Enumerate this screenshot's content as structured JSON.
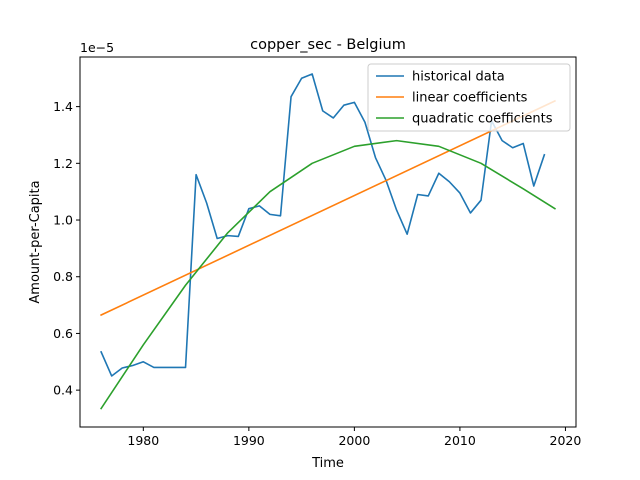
{
  "chart_data": {
    "type": "line",
    "title": "copper_sec - Belgium",
    "xlabel": "Time",
    "ylabel": "Amount-per-Capita",
    "y_offset_label": "1e−5",
    "xlim": [
      1974,
      2021
    ],
    "ylim": [
      0.27,
      1.575
    ],
    "x_ticks": [
      1980,
      1990,
      2000,
      2010,
      2020
    ],
    "y_ticks": [
      0.4,
      0.6,
      0.8,
      1.0,
      1.2,
      1.4
    ],
    "y_tick_labels": [
      "0.4",
      "0.6",
      "0.8",
      "1.0",
      "1.2",
      "1.4"
    ],
    "grid": false,
    "legend_position": "top-right",
    "series": [
      {
        "name": "historical data",
        "color": "#1f77b4",
        "x": [
          1976,
          1977,
          1978,
          1979,
          1980,
          1981,
          1982,
          1983,
          1984,
          1985,
          1986,
          1987,
          1988,
          1989,
          1990,
          1991,
          1992,
          1993,
          1994,
          1995,
          1996,
          1997,
          1998,
          1999,
          2000,
          2001,
          2002,
          2003,
          2004,
          2005,
          2006,
          2007,
          2008,
          2009,
          2010,
          2011,
          2012,
          2013,
          2014,
          2015,
          2016,
          2017,
          2018
        ],
        "y": [
          0.535,
          0.45,
          0.478,
          0.487,
          0.5,
          0.48,
          0.48,
          0.48,
          0.48,
          1.16,
          1.06,
          0.935,
          0.945,
          0.942,
          1.04,
          1.05,
          1.02,
          1.015,
          1.435,
          1.5,
          1.515,
          1.385,
          1.36,
          1.405,
          1.415,
          1.345,
          1.22,
          1.14,
          1.035,
          0.95,
          1.09,
          1.085,
          1.165,
          1.135,
          1.095,
          1.025,
          1.07,
          1.35,
          1.28,
          1.255,
          1.27,
          1.12,
          1.23
        ]
      },
      {
        "name": "linear coefficients",
        "color": "#ff7f0e",
        "x": [
          1976,
          2019
        ],
        "y": [
          0.665,
          1.42
        ]
      },
      {
        "name": "quadratic coefficients",
        "color": "#2ca02c",
        "x": [
          1976,
          1980,
          1984,
          1988,
          1992,
          1996,
          2000,
          2004,
          2008,
          2012,
          2016,
          2019
        ],
        "y": [
          0.335,
          0.56,
          0.77,
          0.955,
          1.1,
          1.2,
          1.26,
          1.28,
          1.26,
          1.2,
          1.11,
          1.04
        ]
      }
    ]
  }
}
